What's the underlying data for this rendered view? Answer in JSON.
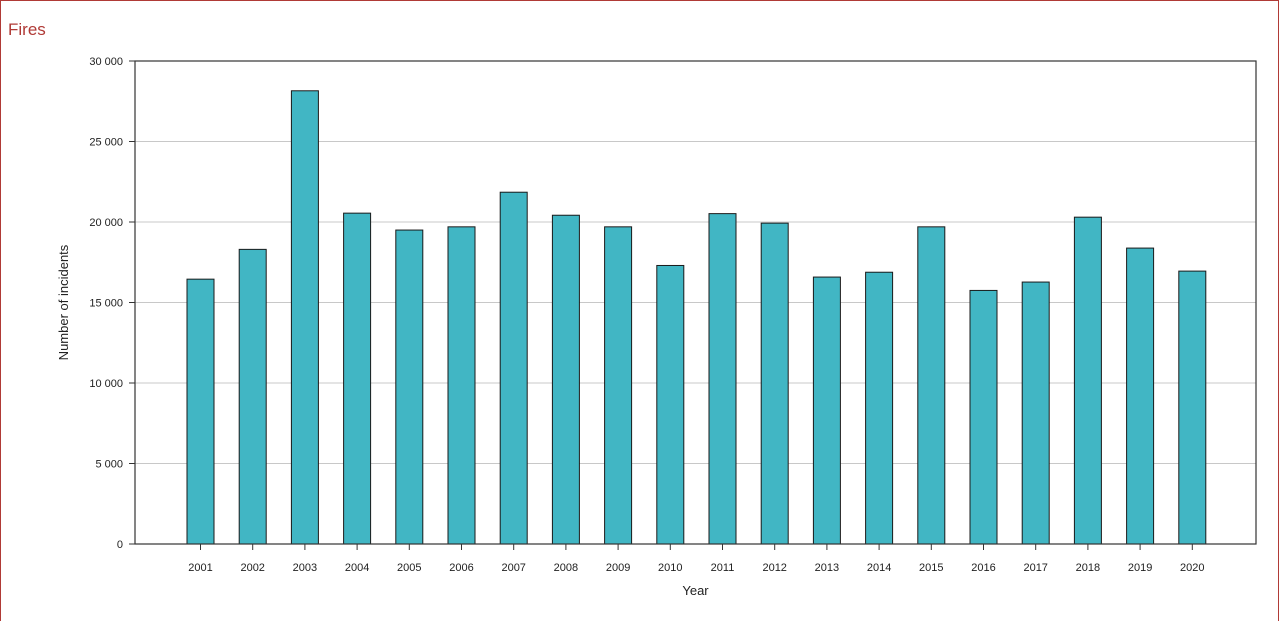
{
  "panel": {
    "title": "Fires"
  },
  "colors": {
    "bar_fill": "#41b6c4",
    "bar_stroke": "#1a1a1a",
    "frame": "#b03a36",
    "grid": "#c8c8c8"
  },
  "chart_data": {
    "type": "bar",
    "title": "Fires",
    "xlabel": "Year",
    "ylabel": "Number of incidents",
    "categories": [
      "2001",
      "2002",
      "2003",
      "2004",
      "2005",
      "2006",
      "2007",
      "2008",
      "2009",
      "2010",
      "2011",
      "2012",
      "2013",
      "2014",
      "2015",
      "2016",
      "2017",
      "2018",
      "2019",
      "2020"
    ],
    "values": [
      16450,
      18300,
      28150,
      20550,
      19500,
      19700,
      21850,
      20420,
      19700,
      17300,
      20520,
      19930,
      16580,
      16880,
      19700,
      15750,
      16270,
      20300,
      18380,
      16950
    ],
    "ylim": [
      0,
      30000
    ],
    "yticks": [
      0,
      5000,
      10000,
      15000,
      20000,
      25000,
      30000
    ],
    "ytick_labels": [
      "0",
      "5 000",
      "10 000",
      "15 000",
      "20 000",
      "25 000",
      "30 000"
    ],
    "grid": true,
    "legend": "none"
  }
}
